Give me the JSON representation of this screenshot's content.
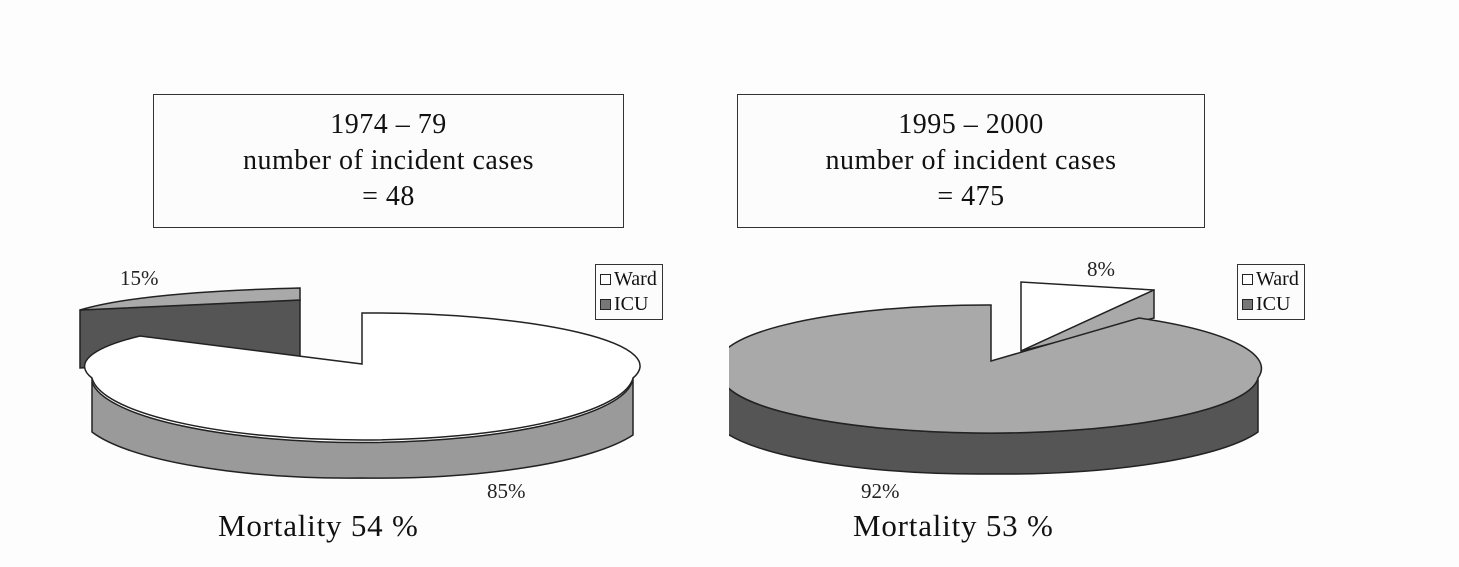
{
  "colors": {
    "ward": "#ffffff",
    "icu": "#a9a9a9",
    "icu_dark": "#555555",
    "ward_side": "#9a9a9a",
    "outline": "#222222"
  },
  "chart_data": [
    {
      "type": "pie",
      "title": [
        "1974 – 79",
        "number of incident cases",
        "= 48"
      ],
      "legend": [
        "Ward",
        "ICU"
      ],
      "legend_position": "right",
      "slices": [
        {
          "label": "Ward",
          "value": 85,
          "text": "85%"
        },
        {
          "label": "ICU",
          "value": 15,
          "text": "15%"
        }
      ],
      "footnote": "Mortality 54 %"
    },
    {
      "type": "pie",
      "title": [
        "1995 – 2000",
        "number of incident cases",
        "= 475"
      ],
      "legend": [
        "Ward",
        "ICU"
      ],
      "legend_position": "right",
      "slices": [
        {
          "label": "Ward",
          "value": 8,
          "text": "8%"
        },
        {
          "label": "ICU",
          "value": 92,
          "text": "92%"
        }
      ],
      "footnote": "Mortality 53 %"
    }
  ]
}
